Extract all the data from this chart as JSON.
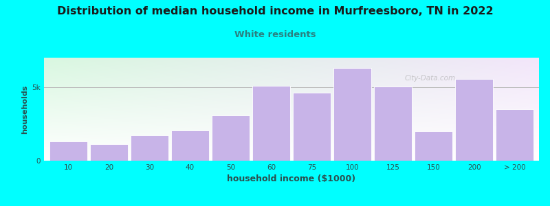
{
  "title": "Distribution of median household income in Murfreesboro, TN in 2022",
  "subtitle": "White residents",
  "xlabel": "household income ($1000)",
  "ylabel": "households",
  "background_color": "#00FFFF",
  "bar_color": "#c8b4e8",
  "bar_edge_color": "#ffffff",
  "title_color": "#1a1a1a",
  "subtitle_color": "#2a8080",
  "axis_label_color": "#2a5050",
  "tick_label_color": "#2a5050",
  "categories": [
    "10",
    "20",
    "30",
    "40",
    "50",
    "60",
    "75",
    "100",
    "125",
    "150",
    "200",
    "> 200"
  ],
  "values": [
    1300,
    1100,
    1750,
    2050,
    3100,
    5100,
    4600,
    6300,
    5050,
    2000,
    5550,
    3500
  ],
  "ylim": [
    0,
    7000
  ],
  "ytick_vals": [
    0,
    5000
  ],
  "ytick_labels": [
    "0",
    "5k"
  ],
  "hline_y": 5000,
  "hline_color": "#bbbbbb",
  "watermark": "City-Data.com"
}
